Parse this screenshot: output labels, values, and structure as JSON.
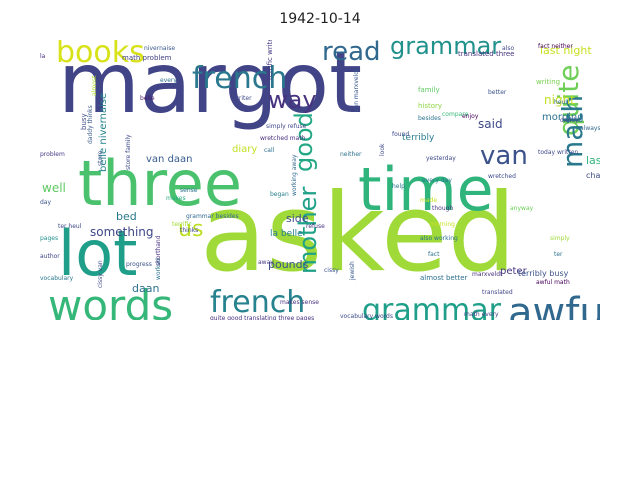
{
  "title": "1942-10-14",
  "chart_data": {
    "type": "wordcloud",
    "title": "1942-10-14",
    "background": "#ffffff",
    "words": [
      {
        "text": "margot",
        "color": "#414487"
      },
      {
        "text": "asked",
        "color": "#a0da39"
      },
      {
        "text": "three",
        "color": "#4ac16d"
      },
      {
        "text": "time",
        "color": "#2fb47c"
      },
      {
        "text": "lot",
        "color": "#1f9e89"
      },
      {
        "text": "words",
        "color": "#35b779"
      },
      {
        "text": "french",
        "color": "#2a788e"
      },
      {
        "text": "french",
        "color": "#26828e"
      },
      {
        "text": "grammar",
        "color": "#21918c"
      },
      {
        "text": "grammar",
        "color": "#1f9e89"
      },
      {
        "text": "awful",
        "color": "#31688e"
      },
      {
        "text": "books",
        "color": "#d8e219"
      },
      {
        "text": "read",
        "color": "#31688e"
      },
      {
        "text": "quite",
        "color": "#6ece58"
      },
      {
        "text": "way",
        "color": "#46327e"
      },
      {
        "text": "good",
        "color": "#22a884"
      },
      {
        "text": "math",
        "color": "#2a788e"
      },
      {
        "text": "van",
        "color": "#3b528b"
      },
      {
        "text": "mother",
        "color": "#1fa188"
      },
      {
        "text": "us",
        "color": "#bddf26"
      },
      {
        "text": "last night",
        "color": "#c8e020"
      },
      {
        "text": "night",
        "color": "#c2df23"
      },
      {
        "text": "morning",
        "color": "#2c728e"
      },
      {
        "text": "said",
        "color": "#3e4a89"
      },
      {
        "text": "last",
        "color": "#2fb47c"
      },
      {
        "text": "chapter",
        "color": "#3e4989"
      },
      {
        "text": "terribly",
        "color": "#287c8e"
      },
      {
        "text": "side",
        "color": "#3e4a89"
      },
      {
        "text": "well",
        "color": "#5ec962"
      },
      {
        "text": "diary",
        "color": "#c2df23"
      },
      {
        "text": "van daan",
        "color": "#365c8d"
      },
      {
        "text": "belle nivernaise",
        "color": "#25848e"
      },
      {
        "text": "something",
        "color": "#3f4788"
      },
      {
        "text": "bed",
        "color": "#2a788e"
      },
      {
        "text": "la belle",
        "color": "#277f8e"
      },
      {
        "text": "pounds",
        "color": "#3b528b"
      },
      {
        "text": "peter",
        "color": "#453581"
      },
      {
        "text": "daan",
        "color": "#2d708e"
      },
      {
        "text": "pages",
        "color": "#21918c"
      },
      {
        "text": "busy",
        "color": "#3e4a89"
      },
      {
        "text": "problem",
        "color": "#443983"
      },
      {
        "text": "store",
        "color": "#3b528b"
      },
      {
        "text": "simply refuse",
        "color": "#3f4788"
      },
      {
        "text": "wretched math",
        "color": "#472d7b"
      },
      {
        "text": "call",
        "color": "#2d708e"
      },
      {
        "text": "family",
        "color": "#5ec962"
      },
      {
        "text": "history",
        "color": "#8fd744"
      },
      {
        "text": "besides",
        "color": "#2c728e"
      },
      {
        "text": "compare",
        "color": "#35b779"
      },
      {
        "text": "found",
        "color": "#3f4788"
      },
      {
        "text": "better",
        "color": "#3b528b"
      },
      {
        "text": "enjoy",
        "color": "#440154"
      },
      {
        "text": "daddy",
        "color": "#3e4989"
      },
      {
        "text": "always",
        "color": "#31688e"
      },
      {
        "text": "today written",
        "color": "#3e4a89"
      },
      {
        "text": "writing",
        "color": "#7ad151"
      },
      {
        "text": "heul",
        "color": "#31688e"
      },
      {
        "text": "translated three",
        "color": "#46337f"
      },
      {
        "text": "fact neither",
        "color": "#440154"
      },
      {
        "text": "also",
        "color": "#3e4989"
      },
      {
        "text": "nivernaise",
        "color": "#38588c"
      },
      {
        "text": "math problem",
        "color": "#424086"
      },
      {
        "text": "la",
        "color": "#472d7b"
      },
      {
        "text": "every",
        "color": "#2e6f8e"
      },
      {
        "text": "belle",
        "color": "#481769"
      },
      {
        "text": "almost",
        "color": "#b5de2b"
      },
      {
        "text": "daddy thinks",
        "color": "#38588c"
      },
      {
        "text": "writer",
        "color": "#3e4a89"
      },
      {
        "text": "terrific writer",
        "color": "#453781"
      },
      {
        "text": "store family",
        "color": "#3e4a89"
      },
      {
        "text": "van marxveldt",
        "color": "#38588c"
      },
      {
        "text": "neither",
        "color": "#2c728e"
      },
      {
        "text": "yesterday",
        "color": "#3e4a89"
      },
      {
        "text": "every day",
        "color": "#2a788e"
      },
      {
        "text": "help",
        "color": "#2a788e"
      },
      {
        "text": "wretched",
        "color": "#3e4a89"
      },
      {
        "text": "though",
        "color": "#453781"
      },
      {
        "text": "began",
        "color": "#277f8e"
      },
      {
        "text": "working away",
        "color": "#31688e"
      },
      {
        "text": "refuse",
        "color": "#46327e"
      },
      {
        "text": "cissy",
        "color": "#3b528b"
      },
      {
        "text": "almost better",
        "color": "#2d708e"
      },
      {
        "text": "also working",
        "color": "#2c728e"
      },
      {
        "text": "marxveldt",
        "color": "#46327e"
      },
      {
        "text": "translated",
        "color": "#3f4788"
      },
      {
        "text": "terribly busy",
        "color": "#3b528b"
      },
      {
        "text": "simply",
        "color": "#a0da39"
      },
      {
        "text": "ter",
        "color": "#2d708e"
      },
      {
        "text": "anyway",
        "color": "#6ece58"
      },
      {
        "text": "awful math",
        "color": "#440154"
      },
      {
        "text": "math every",
        "color": "#3f4788"
      },
      {
        "text": "vocabulary words",
        "color": "#3e4a89"
      },
      {
        "text": "quite good translating three pages",
        "color": "#46337f"
      },
      {
        "text": "makes sense",
        "color": "#46327e"
      },
      {
        "text": "makes",
        "color": "#27ad81"
      },
      {
        "text": "sense",
        "color": "#2c728e"
      },
      {
        "text": "grammar besides",
        "color": "#31688e"
      },
      {
        "text": "terrific",
        "color": "#a0da39"
      },
      {
        "text": "thinks",
        "color": "#3f4788"
      },
      {
        "text": "worked",
        "color": "#2c728e"
      },
      {
        "text": "shorthand",
        "color": "#46337f"
      },
      {
        "text": "progress",
        "color": "#3b528b"
      },
      {
        "text": "vocabulary",
        "color": "#2a788e"
      },
      {
        "text": "author",
        "color": "#3f4788"
      },
      {
        "text": "cissy van",
        "color": "#3e4a89"
      },
      {
        "text": "day",
        "color": "#3b528b"
      },
      {
        "text": "ter heul",
        "color": "#3e4989"
      },
      {
        "text": "away",
        "color": "#443983"
      },
      {
        "text": "made",
        "color": "#c8e020"
      },
      {
        "text": "look",
        "color": "#3e4a89"
      },
      {
        "text": "fact",
        "color": "#2c728e"
      },
      {
        "text": "morning",
        "color": "#c8e020"
      },
      {
        "text": "jewish",
        "color": "#38588c"
      }
    ]
  }
}
